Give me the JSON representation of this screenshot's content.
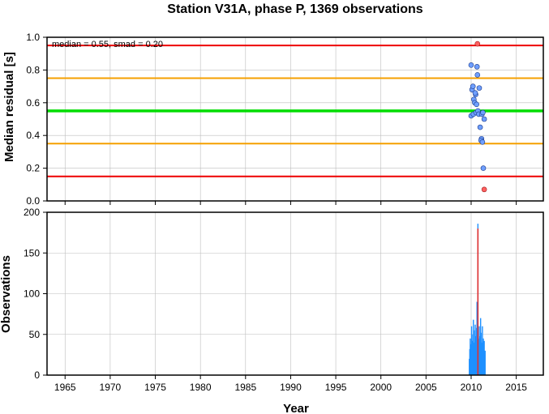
{
  "chart_data": [
    {
      "type": "scatter",
      "title": "Station V31A, phase P, 1369 observations",
      "xlabel": "",
      "ylabel": "Median residual [s]",
      "xlim": [
        1963,
        2018
      ],
      "ylim": [
        0,
        1.0
      ],
      "yticks": [
        "0.0",
        "0.2",
        "0.4",
        "0.6",
        "0.8",
        "1.0"
      ],
      "grid": true,
      "annotation": "median = 0.55, smad = 0.20",
      "reference_lines": [
        {
          "y": 0.95,
          "color": "#ee0000"
        },
        {
          "y": 0.75,
          "color": "#f5a000"
        },
        {
          "y": 0.55,
          "color": "#00dd00"
        },
        {
          "y": 0.35,
          "color": "#f5a000"
        },
        {
          "y": 0.15,
          "color": "#ee0000"
        }
      ],
      "points_in_range": {
        "color": "#6f9fff",
        "x": [
          2010.0,
          2010.1,
          2010.2,
          2010.3,
          2010.5,
          2010.45,
          2010.65,
          2010.7,
          2010.9,
          2010.0,
          2010.25,
          2010.4,
          2010.55,
          2010.75,
          2010.6,
          2010.85,
          2011.0,
          2011.2,
          2011.3,
          2011.45,
          2011.15,
          2011.1,
          2011.25,
          2011.35
        ],
        "y": [
          0.83,
          0.68,
          0.7,
          0.62,
          0.65,
          0.66,
          0.82,
          0.77,
          0.69,
          0.52,
          0.53,
          0.6,
          0.54,
          0.55,
          0.59,
          0.53,
          0.45,
          0.53,
          0.54,
          0.5,
          0.38,
          0.37,
          0.36,
          0.2
        ]
      },
      "points_outliers": {
        "color": "#ff6060",
        "x": [
          2010.7,
          2011.45
        ],
        "y": [
          0.96,
          0.07
        ]
      }
    },
    {
      "type": "bar",
      "xlabel": "Year",
      "ylabel": "Observations",
      "xlim": [
        1963,
        2018
      ],
      "ylim": [
        0,
        200
      ],
      "xticks": [
        "1965",
        "1970",
        "1975",
        "1980",
        "1985",
        "1990",
        "1995",
        "2000",
        "2005",
        "2010",
        "2015"
      ],
      "yticks": [
        "0",
        "50",
        "100",
        "150",
        "200"
      ],
      "grid": true,
      "series": [
        {
          "color": "#1e90ff",
          "x": [
            2009.8,
            2009.85,
            2009.9,
            2009.95,
            2010.0,
            2010.05,
            2010.1,
            2010.15,
            2010.2,
            2010.25,
            2010.3,
            2010.35,
            2010.4,
            2010.45,
            2010.5,
            2010.55,
            2010.6,
            2010.65,
            2010.7,
            2010.75,
            2010.8,
            2010.85,
            2010.9,
            2010.95,
            2011.0,
            2011.05,
            2011.1,
            2011.15,
            2011.2,
            2011.25,
            2011.3,
            2011.35,
            2011.4,
            2011.45,
            2011.5,
            2011.55
          ],
          "values": [
            20,
            32,
            45,
            28,
            38,
            60,
            42,
            30,
            50,
            68,
            35,
            40,
            55,
            62,
            48,
            36,
            58,
            90,
            30,
            186,
            45,
            25,
            60,
            35,
            48,
            70,
            52,
            40,
            38,
            60,
            28,
            45,
            35,
            42,
            25,
            30
          ]
        },
        {
          "color": "#e03030",
          "x": [
            2010.75
          ],
          "values": [
            180
          ]
        }
      ]
    }
  ]
}
